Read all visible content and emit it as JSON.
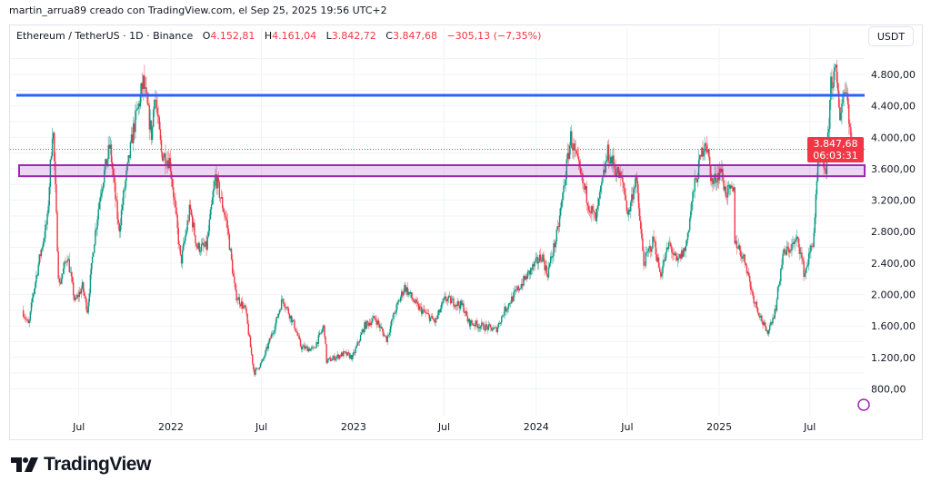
{
  "header": {
    "credit": "martin_arrua89 creado con TradingView.com, el Sep 25, 2025 19:56 UTC+2"
  },
  "legend": {
    "symbol": "Ethereum / TetherUS · 1D · Binance",
    "open_label": "O",
    "open": "4.152,81",
    "high_label": "H",
    "high": "4.161,04",
    "low_label": "L",
    "low": "3.842,72",
    "close_label": "C",
    "close": "3.847,68",
    "change": "−305,13 (−7,35%)"
  },
  "currency_button": "USDT",
  "last_price": {
    "price": "3.847,68",
    "countdown": "06:03:31"
  },
  "logo": {
    "text": "TradingView"
  },
  "colors": {
    "up": "#089981",
    "down": "#f23645",
    "level_line": "#2962ff",
    "zone": "#9c27b0"
  },
  "chart_data": {
    "type": "candlestick",
    "title": "Ethereum / TetherUS · 1D · Binance",
    "ylabel": "USDT",
    "ylim": [
      500,
      5100
    ],
    "grid": true,
    "y_ticks": [
      {
        "value": 4800,
        "label": "4.800,00"
      },
      {
        "value": 4400,
        "label": "4.400,00"
      },
      {
        "value": 4000,
        "label": "4.000,00"
      },
      {
        "value": 3600,
        "label": "3.600,00"
      },
      {
        "value": 3200,
        "label": "3.200,00"
      },
      {
        "value": 2800,
        "label": "2.800,00"
      },
      {
        "value": 2400,
        "label": "2.400,00"
      },
      {
        "value": 2000,
        "label": "2.000,00"
      },
      {
        "value": 1600,
        "label": "1.600,00"
      },
      {
        "value": 1200,
        "label": "1.200,00"
      },
      {
        "value": 800,
        "label": "800,00"
      }
    ],
    "x_ticks": [
      {
        "date": "2021-07-01",
        "label": "Jul"
      },
      {
        "date": "2022-01-01",
        "label": "2022"
      },
      {
        "date": "2022-07-01",
        "label": "Jul"
      },
      {
        "date": "2023-01-01",
        "label": "2023"
      },
      {
        "date": "2023-07-01",
        "label": "Jul"
      },
      {
        "date": "2024-01-01",
        "label": "2024"
      },
      {
        "date": "2024-07-01",
        "label": "Jul"
      },
      {
        "date": "2025-01-01",
        "label": "2025"
      },
      {
        "date": "2025-07-01",
        "label": "Jul"
      }
    ],
    "xlim": [
      "2021-03-10",
      "2025-09-25"
    ],
    "last_close": 3847.68,
    "annotations": [
      {
        "type": "horizontal_line",
        "price": 4535,
        "color": "#2962ff"
      },
      {
        "type": "zone",
        "price_from": 3505,
        "price_to": 3645,
        "color": "#9c27b0"
      }
    ],
    "price_path": [
      [
        "2021-03-12",
        1800
      ],
      [
        "2021-03-25",
        1600
      ],
      [
        "2021-04-01",
        1950
      ],
      [
        "2021-04-15",
        2450
      ],
      [
        "2021-05-01",
        2950
      ],
      [
        "2021-05-12",
        4200
      ],
      [
        "2021-05-24",
        2100
      ],
      [
        "2021-06-10",
        2500
      ],
      [
        "2021-06-25",
        1900
      ],
      [
        "2021-07-10",
        2100
      ],
      [
        "2021-07-20",
        1800
      ],
      [
        "2021-08-01",
        2600
      ],
      [
        "2021-08-15",
        3300
      ],
      [
        "2021-09-03",
        3900
      ],
      [
        "2021-09-21",
        2800
      ],
      [
        "2021-10-01",
        3300
      ],
      [
        "2021-10-20",
        4100
      ],
      [
        "2021-11-09",
        4700
      ],
      [
        "2021-11-26",
        4000
      ],
      [
        "2021-12-01",
        4600
      ],
      [
        "2021-12-15",
        3800
      ],
      [
        "2022-01-01",
        3700
      ],
      [
        "2022-01-23",
        2400
      ],
      [
        "2022-02-10",
        3100
      ],
      [
        "2022-02-24",
        2600
      ],
      [
        "2022-03-15",
        2600
      ],
      [
        "2022-04-02",
        3500
      ],
      [
        "2022-04-25",
        2900
      ],
      [
        "2022-05-12",
        2000
      ],
      [
        "2022-06-01",
        1800
      ],
      [
        "2022-06-18",
        1000
      ],
      [
        "2022-07-05",
        1150
      ],
      [
        "2022-08-01",
        1650
      ],
      [
        "2022-08-14",
        1950
      ],
      [
        "2022-09-07",
        1600
      ],
      [
        "2022-09-20",
        1330
      ],
      [
        "2022-10-15",
        1300
      ],
      [
        "2022-11-05",
        1600
      ],
      [
        "2022-11-10",
        1150
      ],
      [
        "2022-12-15",
        1250
      ],
      [
        "2023-01-01",
        1200
      ],
      [
        "2023-01-25",
        1600
      ],
      [
        "2023-02-15",
        1700
      ],
      [
        "2023-03-10",
        1430
      ],
      [
        "2023-03-25",
        1750
      ],
      [
        "2023-04-15",
        2100
      ],
      [
        "2023-05-10",
        1850
      ],
      [
        "2023-06-15",
        1650
      ],
      [
        "2023-07-05",
        1950
      ],
      [
        "2023-08-10",
        1850
      ],
      [
        "2023-08-20",
        1650
      ],
      [
        "2023-09-15",
        1600
      ],
      [
        "2023-10-15",
        1550
      ],
      [
        "2023-11-01",
        1800
      ],
      [
        "2023-12-01",
        2100
      ],
      [
        "2023-12-28",
        2350
      ],
      [
        "2024-01-15",
        2500
      ],
      [
        "2024-01-25",
        2250
      ],
      [
        "2024-02-15",
        2800
      ],
      [
        "2024-03-12",
        4000
      ],
      [
        "2024-04-01",
        3500
      ],
      [
        "2024-04-20",
        3100
      ],
      [
        "2024-05-01",
        2950
      ],
      [
        "2024-05-25",
        3800
      ],
      [
        "2024-06-10",
        3600
      ],
      [
        "2024-06-25",
        3400
      ],
      [
        "2024-07-05",
        3000
      ],
      [
        "2024-07-20",
        3500
      ],
      [
        "2024-08-05",
        2400
      ],
      [
        "2024-08-25",
        2700
      ],
      [
        "2024-09-07",
        2250
      ],
      [
        "2024-09-25",
        2650
      ],
      [
        "2024-10-10",
        2400
      ],
      [
        "2024-10-28",
        2600
      ],
      [
        "2024-11-12",
        3300
      ],
      [
        "2024-12-06",
        4000
      ],
      [
        "2024-12-20",
        3400
      ],
      [
        "2025-01-06",
        3600
      ],
      [
        "2025-01-15",
        3300
      ],
      [
        "2025-02-01",
        3300
      ],
      [
        "2025-02-03",
        2700
      ],
      [
        "2025-02-25",
        2400
      ],
      [
        "2025-03-10",
        2000
      ],
      [
        "2025-04-08",
        1500
      ],
      [
        "2025-04-25",
        1800
      ],
      [
        "2025-05-10",
        2500
      ],
      [
        "2025-06-10",
        2700
      ],
      [
        "2025-06-22",
        2250
      ],
      [
        "2025-07-10",
        2700
      ],
      [
        "2025-07-20",
        3700
      ],
      [
        "2025-08-05",
        3600
      ],
      [
        "2025-08-14",
        4700
      ],
      [
        "2025-08-24",
        4800
      ],
      [
        "2025-09-01",
        4300
      ],
      [
        "2025-09-13",
        4700
      ],
      [
        "2025-09-25",
        3848
      ]
    ]
  }
}
